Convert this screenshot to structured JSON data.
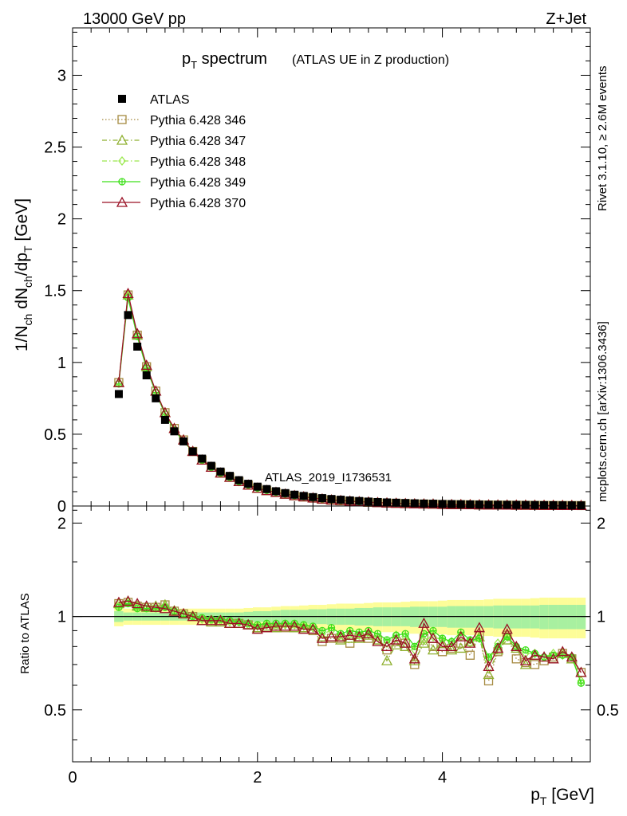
{
  "header": {
    "energy_label": "13000 GeV pp",
    "process_label": "Z+Jet"
  },
  "side_labels": {
    "rivet": "Rivet 3.1.10, ≥ 2.6M events",
    "mcplots": "mcplots.cern.ch [arXiv:1306.3436]"
  },
  "chart_data": [
    {
      "type": "scatter",
      "title_main": "p",
      "title_sub": "T",
      "title_rest": " spectrum",
      "title_note": "(ATLAS UE in Z production)",
      "watermark": "ATLAS_2019_I1736531",
      "ylabel": "1/N_ch dN_ch/dp_T [GeV]",
      "xlim": [
        0,
        5.6
      ],
      "ylim": [
        0,
        3.33
      ],
      "yticks": [
        0,
        0.5,
        1,
        1.5,
        2,
        2.5,
        3
      ],
      "ytick_labels": [
        "0",
        "0.5",
        "1",
        "1.5",
        "2",
        "2.5",
        "3"
      ],
      "legend_position": "top-left",
      "x": [
        0.5,
        0.6,
        0.7,
        0.8,
        0.9,
        1.0,
        1.1,
        1.2,
        1.3,
        1.4,
        1.5,
        1.6,
        1.7,
        1.8,
        1.9,
        2.0,
        2.1,
        2.2,
        2.3,
        2.4,
        2.5,
        2.6,
        2.7,
        2.8,
        2.9,
        3.0,
        3.1,
        3.2,
        3.3,
        3.4,
        3.5,
        3.6,
        3.7,
        3.8,
        3.9,
        4.0,
        4.1,
        4.2,
        4.3,
        4.4,
        4.5,
        4.6,
        4.7,
        4.8,
        4.9,
        5.0,
        5.1,
        5.2,
        5.3,
        5.4,
        5.5
      ],
      "series": [
        {
          "name": "ATLAS",
          "color": "#000000",
          "marker": "square-filled",
          "values": [
            0.78,
            1.33,
            1.11,
            0.91,
            0.75,
            0.6,
            0.52,
            0.45,
            0.38,
            0.33,
            0.28,
            0.24,
            0.21,
            0.18,
            0.155,
            0.135,
            0.118,
            0.103,
            0.09,
            0.079,
            0.07,
            0.062,
            0.055,
            0.049,
            0.044,
            0.039,
            0.035,
            0.031,
            0.028,
            0.025,
            0.023,
            0.021,
            0.019,
            0.017,
            0.016,
            0.014,
            0.013,
            0.012,
            0.011,
            0.01,
            0.009,
            0.0085,
            0.008,
            0.0075,
            0.007,
            0.0065,
            0.006,
            0.0055,
            0.005,
            0.0047,
            0.0044
          ]
        },
        {
          "name": "Pythia 6.428 346",
          "color": "#a58a40",
          "marker": "square-open",
          "line": "dotted",
          "values": [
            0.86,
            1.47,
            1.19,
            0.97,
            0.8,
            0.65,
            0.54,
            0.46,
            0.38,
            0.32,
            0.27,
            0.23,
            0.2,
            0.17,
            0.145,
            0.123,
            0.107,
            0.094,
            0.082,
            0.071,
            0.063,
            0.055,
            0.047,
            0.041,
            0.036,
            0.032,
            0.029,
            0.026,
            0.023,
            0.02,
            0.019,
            0.017,
            0.015,
            0.014,
            0.013,
            0.011,
            0.01,
            0.0095,
            0.0088,
            0.008,
            0.0072,
            0.0068,
            0.0063,
            0.0058,
            0.0053,
            0.0049,
            0.0045,
            0.0041,
            0.0038,
            0.0035,
            0.0032
          ]
        },
        {
          "name": "Pythia 6.428 347",
          "color": "#8fb030",
          "marker": "triangle-open",
          "line": "dashdot",
          "values": [
            0.86,
            1.47,
            1.19,
            0.97,
            0.8,
            0.65,
            0.54,
            0.46,
            0.38,
            0.32,
            0.27,
            0.23,
            0.2,
            0.17,
            0.145,
            0.123,
            0.108,
            0.095,
            0.083,
            0.072,
            0.064,
            0.056,
            0.048,
            0.042,
            0.037,
            0.033,
            0.03,
            0.027,
            0.024,
            0.021,
            0.019,
            0.017,
            0.015,
            0.014,
            0.013,
            0.011,
            0.01,
            0.0096,
            0.0089,
            0.0081,
            0.0073,
            0.0069,
            0.0064,
            0.0059,
            0.0054,
            0.005,
            0.0046,
            0.0042,
            0.0039,
            0.0036,
            0.0033
          ]
        },
        {
          "name": "Pythia 6.428 348",
          "color": "#9ae84c",
          "marker": "diamond-open",
          "line": "dashdot",
          "values": [
            0.86,
            1.46,
            1.19,
            0.97,
            0.8,
            0.65,
            0.54,
            0.46,
            0.38,
            0.32,
            0.27,
            0.23,
            0.2,
            0.17,
            0.146,
            0.125,
            0.109,
            0.096,
            0.084,
            0.073,
            0.065,
            0.057,
            0.049,
            0.043,
            0.038,
            0.034,
            0.031,
            0.027,
            0.024,
            0.021,
            0.019,
            0.017,
            0.016,
            0.014,
            0.013,
            0.012,
            0.011,
            0.0098,
            0.009,
            0.0082,
            0.0075,
            0.007,
            0.0065,
            0.006,
            0.0055,
            0.0051,
            0.0047,
            0.0043,
            0.004,
            0.0037,
            0.0034
          ]
        },
        {
          "name": "Pythia 6.428 349",
          "color": "#3ee01a",
          "marker": "circle-cross",
          "line": "solid",
          "values": [
            0.85,
            1.45,
            1.18,
            0.96,
            0.79,
            0.64,
            0.53,
            0.45,
            0.38,
            0.32,
            0.27,
            0.23,
            0.2,
            0.17,
            0.147,
            0.126,
            0.11,
            0.097,
            0.085,
            0.074,
            0.066,
            0.058,
            0.05,
            0.044,
            0.039,
            0.035,
            0.031,
            0.028,
            0.025,
            0.022,
            0.02,
            0.018,
            0.016,
            0.015,
            0.013,
            0.012,
            0.011,
            0.01,
            0.0092,
            0.0084,
            0.0076,
            0.0071,
            0.0066,
            0.0061,
            0.0056,
            0.0052,
            0.0048,
            0.0044,
            0.0041,
            0.0038,
            0.0035
          ]
        },
        {
          "name": "Pythia 6.428 370",
          "color": "#9a1024",
          "marker": "triangle-open",
          "line": "solid",
          "values": [
            0.86,
            1.48,
            1.2,
            0.98,
            0.8,
            0.65,
            0.54,
            0.46,
            0.38,
            0.32,
            0.27,
            0.23,
            0.2,
            0.17,
            0.146,
            0.124,
            0.108,
            0.095,
            0.083,
            0.072,
            0.064,
            0.056,
            0.049,
            0.042,
            0.038,
            0.034,
            0.03,
            0.027,
            0.024,
            0.021,
            0.019,
            0.017,
            0.015,
            0.014,
            0.013,
            0.011,
            0.01,
            0.0097,
            0.0089,
            0.0081,
            0.0074,
            0.0069,
            0.0064,
            0.0059,
            0.0054,
            0.005,
            0.0046,
            0.0042,
            0.0039,
            0.0036,
            0.0033
          ]
        }
      ]
    },
    {
      "type": "scatter",
      "ylabel": "Ratio to ATLAS",
      "xlabel_main": "p",
      "xlabel_sub": "T",
      "xlabel_rest": " [GeV]",
      "xlim": [
        0,
        5.6
      ],
      "ylim": [
        0.34,
        2.27
      ],
      "xticks": [
        0,
        2,
        4
      ],
      "xtick_labels": [
        "0",
        "2",
        "4"
      ],
      "yticks": [
        0.5,
        1,
        2
      ],
      "ytick_labels": [
        "0.5",
        "1",
        "2"
      ],
      "reference_line": 1,
      "band_inner_halfwidth": [
        0.04,
        0.03,
        0.03,
        0.03,
        0.03,
        0.03,
        0.03,
        0.03,
        0.03,
        0.03,
        0.03,
        0.03,
        0.03,
        0.03,
        0.035,
        0.04,
        0.04,
        0.045,
        0.05,
        0.05,
        0.05,
        0.055,
        0.055,
        0.06,
        0.06,
        0.06,
        0.065,
        0.065,
        0.07,
        0.07,
        0.07,
        0.07,
        0.075,
        0.075,
        0.075,
        0.075,
        0.08,
        0.08,
        0.08,
        0.08,
        0.08,
        0.085,
        0.085,
        0.085,
        0.085,
        0.085,
        0.09,
        0.09,
        0.09,
        0.09,
        0.09
      ],
      "band_outer_halfwidth": [
        0.07,
        0.06,
        0.06,
        0.06,
        0.06,
        0.06,
        0.06,
        0.06,
        0.06,
        0.06,
        0.06,
        0.06,
        0.06,
        0.06,
        0.065,
        0.07,
        0.07,
        0.075,
        0.08,
        0.08,
        0.085,
        0.09,
        0.09,
        0.095,
        0.1,
        0.1,
        0.1,
        0.105,
        0.11,
        0.11,
        0.11,
        0.115,
        0.12,
        0.12,
        0.12,
        0.125,
        0.13,
        0.13,
        0.13,
        0.13,
        0.135,
        0.14,
        0.14,
        0.14,
        0.14,
        0.145,
        0.15,
        0.15,
        0.15,
        0.15,
        0.15
      ],
      "band_colors": {
        "inner": "#a8f0a0",
        "outer": "#fdfd98"
      },
      "series": [
        {
          "color": "#a58a40",
          "marker": "square-open",
          "line": "dotted",
          "values": [
            1.1,
            1.11,
            1.08,
            1.07,
            1.07,
            1.09,
            1.04,
            1.02,
            1.0,
            0.97,
            0.96,
            0.96,
            0.95,
            0.95,
            0.94,
            0.91,
            0.92,
            0.92,
            0.92,
            0.92,
            0.91,
            0.9,
            0.83,
            0.85,
            0.85,
            0.82,
            0.86,
            0.85,
            0.84,
            0.78,
            0.83,
            0.82,
            0.7,
            0.85,
            0.8,
            0.77,
            0.79,
            0.82,
            0.75,
            0.87,
            0.62,
            0.77,
            0.87,
            0.73,
            0.71,
            0.7,
            0.72,
            0.74,
            0.76,
            0.73,
            0.66
          ]
        },
        {
          "color": "#8fb030",
          "marker": "triangle-open",
          "line": "dashdot",
          "values": [
            1.1,
            1.12,
            1.08,
            1.07,
            1.08,
            1.09,
            1.04,
            1.02,
            1.0,
            0.97,
            0.96,
            0.96,
            0.95,
            0.95,
            0.94,
            0.92,
            0.93,
            0.92,
            0.93,
            0.92,
            0.92,
            0.91,
            0.86,
            0.86,
            0.84,
            0.85,
            0.85,
            0.87,
            0.84,
            0.72,
            0.81,
            0.8,
            0.72,
            0.82,
            0.78,
            0.82,
            0.78,
            0.79,
            0.83,
            0.86,
            0.65,
            0.78,
            0.84,
            0.79,
            0.7,
            0.75,
            0.74,
            0.73,
            0.76,
            0.73,
            0.66
          ]
        },
        {
          "color": "#9ae84c",
          "marker": "diamond-open",
          "line": "dashdot",
          "values": [
            1.08,
            1.11,
            1.07,
            1.08,
            1.08,
            1.08,
            1.05,
            1.02,
            1.01,
            0.98,
            0.97,
            0.97,
            0.96,
            0.96,
            0.94,
            0.93,
            0.94,
            0.93,
            0.94,
            0.94,
            0.93,
            0.92,
            0.88,
            0.9,
            0.87,
            0.88,
            0.87,
            0.88,
            0.86,
            0.82,
            0.87,
            0.86,
            0.78,
            0.84,
            0.86,
            0.84,
            0.83,
            0.86,
            0.82,
            0.85,
            0.72,
            0.82,
            0.86,
            0.8,
            0.76,
            0.76,
            0.74,
            0.76,
            0.75,
            0.74,
            0.62
          ]
        },
        {
          "color": "#3ee01a",
          "marker": "circle-cross",
          "line": "solid",
          "values": [
            1.07,
            1.1,
            1.06,
            1.06,
            1.06,
            1.07,
            1.04,
            1.02,
            1.0,
            0.99,
            0.98,
            0.98,
            0.97,
            0.96,
            0.95,
            0.94,
            0.95,
            0.95,
            0.95,
            0.95,
            0.94,
            0.93,
            0.9,
            0.92,
            0.88,
            0.9,
            0.89,
            0.9,
            0.88,
            0.84,
            0.87,
            0.88,
            0.8,
            0.88,
            0.9,
            0.85,
            0.83,
            0.89,
            0.84,
            0.85,
            0.74,
            0.8,
            0.86,
            0.8,
            0.78,
            0.76,
            0.74,
            0.75,
            0.75,
            0.74,
            0.61
          ]
        },
        {
          "color": "#9a1024",
          "marker": "triangle-open",
          "line": "solid",
          "values": [
            1.11,
            1.12,
            1.1,
            1.08,
            1.07,
            1.06,
            1.04,
            1.02,
            1.0,
            0.97,
            0.97,
            0.97,
            0.95,
            0.95,
            0.94,
            0.91,
            0.92,
            0.93,
            0.93,
            0.93,
            0.91,
            0.91,
            0.85,
            0.86,
            0.86,
            0.87,
            0.86,
            0.88,
            0.83,
            0.8,
            0.84,
            0.82,
            0.73,
            0.95,
            0.85,
            0.8,
            0.8,
            0.86,
            0.82,
            0.92,
            0.69,
            0.79,
            0.91,
            0.8,
            0.72,
            0.75,
            0.74,
            0.73,
            0.77,
            0.74,
            0.66
          ]
        }
      ]
    }
  ]
}
